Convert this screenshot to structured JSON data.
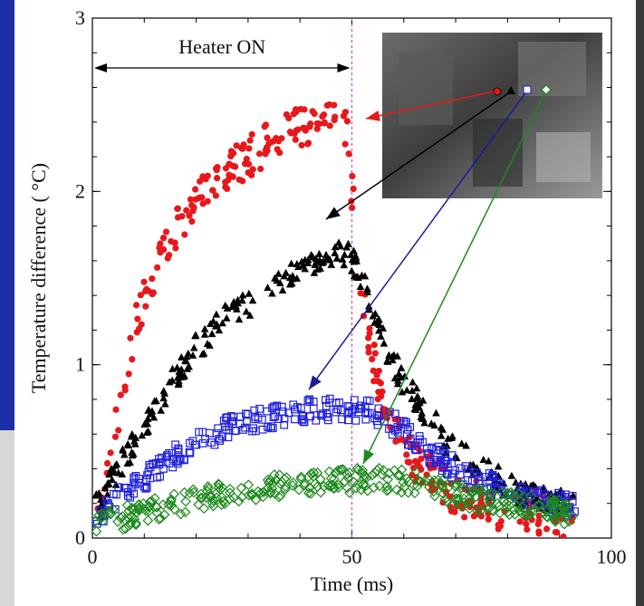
{
  "chart_data": {
    "type": "scatter",
    "xlabel": "Time (ms)",
    "ylabel": "Temperature difference ( °C)",
    "xlim": [
      0,
      100
    ],
    "ylim": [
      0,
      3
    ],
    "xticks": [
      0,
      50,
      100
    ],
    "yticks": [
      0,
      1,
      2,
      3
    ],
    "annotation": "Heater ON",
    "heater_off_time": 50,
    "series": [
      {
        "marker": "filled-circle",
        "color": "#e8171b",
        "x": [
          2,
          5,
          8,
          11,
          15,
          20,
          25,
          30,
          35,
          40,
          45,
          49,
          51,
          53,
          55,
          58,
          62,
          66,
          70,
          75,
          80,
          85,
          90
        ],
        "y": [
          0.2,
          0.7,
          1.2,
          1.45,
          1.75,
          1.95,
          2.1,
          2.2,
          2.3,
          2.38,
          2.4,
          2.35,
          1.7,
          1.2,
          0.9,
          0.6,
          0.45,
          0.35,
          0.25,
          0.2,
          0.15,
          0.15,
          0.12
        ]
      },
      {
        "marker": "filled-triangle",
        "color": "#000000",
        "x": [
          2,
          6,
          10,
          15,
          20,
          25,
          30,
          35,
          40,
          45,
          49,
          52,
          55,
          60,
          65,
          70,
          75,
          80,
          85,
          90
        ],
        "y": [
          0.25,
          0.45,
          0.65,
          0.9,
          1.1,
          1.25,
          1.35,
          1.45,
          1.55,
          1.65,
          1.65,
          1.5,
          1.2,
          0.9,
          0.7,
          0.5,
          0.4,
          0.3,
          0.25,
          0.2
        ]
      },
      {
        "marker": "open-square",
        "color": "#2222dd",
        "x": [
          2,
          6,
          10,
          15,
          20,
          25,
          30,
          35,
          40,
          45,
          50,
          55,
          60,
          65,
          70,
          75,
          80,
          85,
          90
        ],
        "y": [
          0.15,
          0.25,
          0.35,
          0.45,
          0.55,
          0.62,
          0.68,
          0.7,
          0.72,
          0.75,
          0.75,
          0.72,
          0.62,
          0.5,
          0.4,
          0.32,
          0.27,
          0.22,
          0.2
        ]
      },
      {
        "marker": "open-diamond",
        "color": "#1c8a1c",
        "x": [
          2,
          6,
          10,
          15,
          20,
          25,
          30,
          35,
          40,
          45,
          50,
          55,
          60,
          65,
          70,
          75,
          80,
          85,
          90
        ],
        "y": [
          0.1,
          0.12,
          0.15,
          0.18,
          0.22,
          0.25,
          0.28,
          0.3,
          0.3,
          0.32,
          0.33,
          0.35,
          0.33,
          0.3,
          0.25,
          0.22,
          0.2,
          0.18,
          0.15
        ]
      }
    ]
  }
}
